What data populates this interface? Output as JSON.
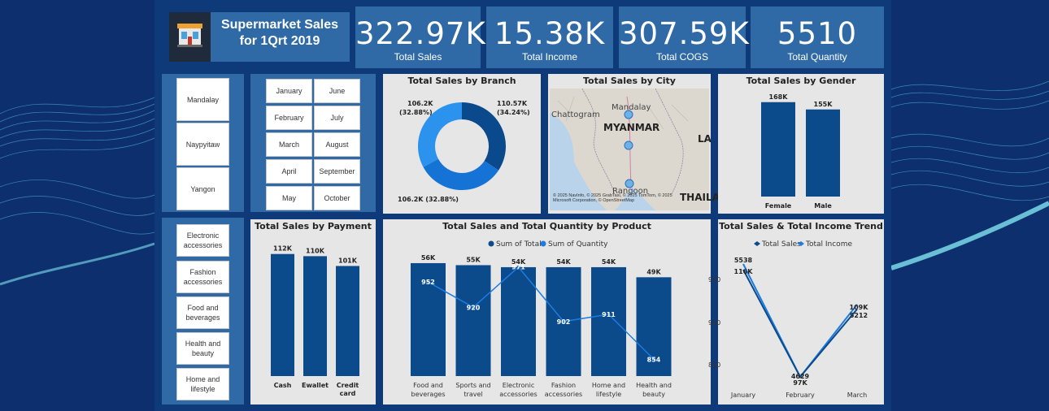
{
  "header": {
    "title": "Supermarket Sales for 1Qrt 2019",
    "logo_icon": "supermarket-store-icon"
  },
  "kpis": [
    {
      "value": "322.97K",
      "label": "Total Sales"
    },
    {
      "value": "15.38K",
      "label": "Total Income"
    },
    {
      "value": "307.59K",
      "label": "Total COGS"
    },
    {
      "value": "5510",
      "label": "Total Quantity"
    }
  ],
  "city_slicer": [
    "Mandalay",
    "Naypyitaw",
    "Yangon"
  ],
  "month_slicer": [
    "January",
    "June",
    "February",
    "July",
    "March",
    "August",
    "April",
    "September",
    "May",
    "October"
  ],
  "product_slicer": [
    "Electronic accessories",
    "Fashion accessories",
    "Food and beverages",
    "Health and beauty",
    "Home and lifestyle"
  ],
  "colors": {
    "background": "#0d2f6e",
    "card": "#2f6aa6",
    "panel": "#e6e6e6",
    "bar": "#0b4a8b",
    "line": "#1e7be0",
    "donut_dark": "#0a4a8c",
    "donut_mid": "#1673d6",
    "donut_light": "#2b92ee"
  },
  "map": {
    "title": "Total Sales by City",
    "labels": [
      "Mandalay",
      "MYANMAR",
      "Chattogram",
      "LA",
      "Rangoon",
      "THAILA"
    ],
    "attribution": "© 2025 NavInfo, © 2025 GrabTaxi, © 2025 TomTom, © 2025 Microsoft Corporation, © OpenStreetMap"
  },
  "chart_data": [
    {
      "type": "pie",
      "title": "Total Sales by Branch",
      "slices": [
        {
          "value": 110.57,
          "label": "110.57K",
          "pct": "(34.24%)"
        },
        {
          "value": 106.2,
          "label": "106.2K (32.88%)",
          "pct": "(32.88%)"
        },
        {
          "value": 106.2,
          "label": "106.2K",
          "pct": "(32.88%)"
        }
      ]
    },
    {
      "type": "bar",
      "title": "Total Sales by Gender",
      "categories": [
        "Female",
        "Male"
      ],
      "values": [
        168,
        155
      ],
      "labels": [
        "168K",
        "155K"
      ],
      "ylim": [
        0,
        185
      ]
    },
    {
      "type": "bar",
      "title": "Total Sales by Payment",
      "categories": [
        "Cash",
        "Ewallet",
        "Credit card"
      ],
      "values": [
        112,
        110,
        101
      ],
      "labels": [
        "112K",
        "110K",
        "101K"
      ],
      "ylim": [
        0,
        117
      ]
    },
    {
      "type": "bar",
      "title": "Total Sales and Total Quantity by Product",
      "legend": [
        "Sum of Total",
        "Sum of Quantity"
      ],
      "categories": [
        "Food and beverages",
        "Sports and travel",
        "Electronic accessories",
        "Fashion accessories",
        "Home and lifestyle",
        "Health and beauty"
      ],
      "series": [
        {
          "name": "Sum of Total",
          "values": [
            56,
            55,
            54,
            54,
            54,
            49
          ],
          "labels": [
            "56K",
            "55K",
            "54K",
            "54K",
            "54K",
            "49K"
          ]
        },
        {
          "name": "Sum of Quantity",
          "values": [
            952,
            920,
            971,
            902,
            911,
            854
          ]
        }
      ],
      "ylim": [
        0,
        58
      ],
      "y2lim": [
        840,
        980
      ]
    },
    {
      "type": "line",
      "title": "Total Sales & Total Income Trend",
      "legend": [
        "Total Sales",
        "Total Income"
      ],
      "categories": [
        "January",
        "February",
        "March"
      ],
      "series": [
        {
          "name": "Total Sales",
          "values": [
            116,
            97,
            109
          ],
          "labels": [
            "116K",
            "97K",
            "109K"
          ]
        },
        {
          "name": "Total Income",
          "values": [
            5538,
            4629,
            5212
          ],
          "labels": [
            "5538",
            "4629",
            "5212"
          ]
        }
      ],
      "yticks": [
        950,
        900,
        850
      ]
    }
  ]
}
